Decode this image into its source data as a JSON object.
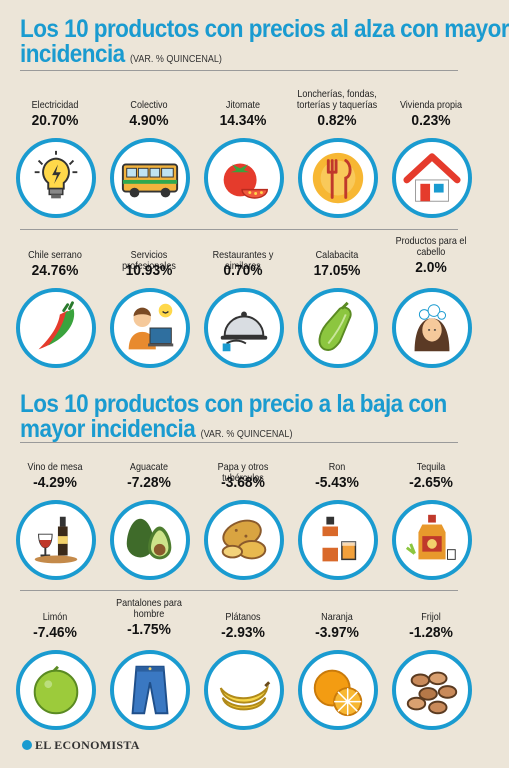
{
  "section_up": {
    "title_line1": "Los 10 productos con precios al alza con mayor",
    "title_line2": "incidencia",
    "subtitle": "(VAR. % QUINCENAL)",
    "items": [
      {
        "label": "Electricidad",
        "value": "20.70%",
        "icon": "lightbulb-icon"
      },
      {
        "label": "Colectivo",
        "value": "4.90%",
        "icon": "bus-icon"
      },
      {
        "label": "Jitomate",
        "value": "14.34%",
        "icon": "tomato-icon"
      },
      {
        "label": "Loncherías, fondas, torterías y taquerías",
        "value": "0.82%",
        "icon": "fork-knife-icon"
      },
      {
        "label": "Vivienda propia",
        "value": "0.23%",
        "icon": "house-icon"
      },
      {
        "label": "Chile serrano",
        "value": "24.76%",
        "icon": "chili-icon"
      },
      {
        "label": "Servicios profesionales",
        "value": "10.93%",
        "icon": "professional-icon"
      },
      {
        "label": "Restaurantes y similares",
        "value": "0.70%",
        "icon": "cloche-icon"
      },
      {
        "label": "Calabacita",
        "value": "17.05%",
        "icon": "zucchini-icon"
      },
      {
        "label": "Productos para el cabello",
        "value": "2.0%",
        "icon": "hair-care-icon"
      }
    ]
  },
  "section_down": {
    "title_line1": "Los 10 productos con precio a la baja con",
    "title_line2": "mayor incidencia",
    "subtitle": "(VAR. % QUINCENAL)",
    "items": [
      {
        "label": "Vino de mesa",
        "value": "-4.29%",
        "icon": "wine-icon"
      },
      {
        "label": "Aguacate",
        "value": "-7.28%",
        "icon": "avocado-icon"
      },
      {
        "label": "Papa y otros tubérculos",
        "value": "-3.68%",
        "icon": "potato-icon"
      },
      {
        "label": "Ron",
        "value": "-5.43%",
        "icon": "rum-icon"
      },
      {
        "label": "Tequila",
        "value": "-2.65%",
        "icon": "tequila-icon"
      },
      {
        "label": "Limón",
        "value": "-7.46%",
        "icon": "lime-icon"
      },
      {
        "label": "Pantalones para hombre",
        "value": "-1.75%",
        "icon": "jeans-icon"
      },
      {
        "label": "Plátanos",
        "value": "-2.93%",
        "icon": "banana-icon"
      },
      {
        "label": "Naranja",
        "value": "-3.97%",
        "icon": "orange-icon"
      },
      {
        "label": "Frijol",
        "value": "-1.28%",
        "icon": "beans-icon"
      }
    ]
  },
  "footer": {
    "logo": "EL ECONOMISTA"
  },
  "colors": {
    "accent": "#1a9bd0",
    "background": "#ece5d8"
  }
}
